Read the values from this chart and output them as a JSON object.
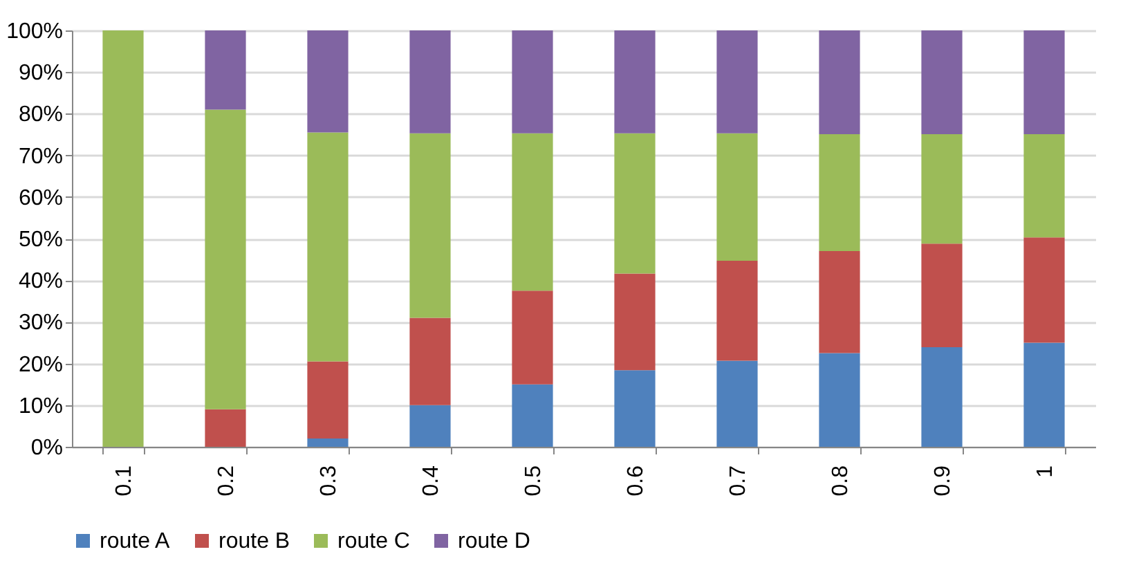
{
  "chart_data": {
    "type": "bar",
    "stacked": true,
    "categories": [
      "0.1",
      "0.2",
      "0.3",
      "0.4",
      "0.5",
      "0.6",
      "0.7",
      "0.8",
      "0.9",
      "1"
    ],
    "series": [
      {
        "name": "route A",
        "color": "#4f81bd",
        "values": [
          0,
          0,
          2,
          10,
          15,
          18.4,
          20.7,
          22.5,
          23.9,
          25
        ]
      },
      {
        "name": "route B",
        "color": "#c0504d",
        "values": [
          0,
          9,
          18.5,
          21,
          22.5,
          23.2,
          24,
          24.5,
          24.9,
          25.3
        ]
      },
      {
        "name": "route C",
        "color": "#9bbb59",
        "values": [
          100,
          72,
          55,
          44.3,
          37.8,
          33.7,
          30.6,
          28.1,
          26.3,
          24.8
        ]
      },
      {
        "name": "route D",
        "color": "#8064a2",
        "values": [
          0,
          19,
          24.5,
          24.7,
          24.7,
          24.7,
          24.7,
          24.9,
          24.9,
          24.9
        ]
      }
    ],
    "ylim": [
      0,
      100
    ],
    "yticks": [
      {
        "value": 0,
        "label": "0%"
      },
      {
        "value": 10,
        "label": "10%"
      },
      {
        "value": 20,
        "label": "20%"
      },
      {
        "value": 30,
        "label": "30%"
      },
      {
        "value": 40,
        "label": "40%"
      },
      {
        "value": 50,
        "label": "50%"
      },
      {
        "value": 60,
        "label": "60%"
      },
      {
        "value": 70,
        "label": "70%"
      },
      {
        "value": 80,
        "label": "80%"
      },
      {
        "value": 90,
        "label": "90%"
      },
      {
        "value": 100,
        "label": "100%"
      }
    ],
    "grid": "y",
    "legend": "bottom"
  }
}
